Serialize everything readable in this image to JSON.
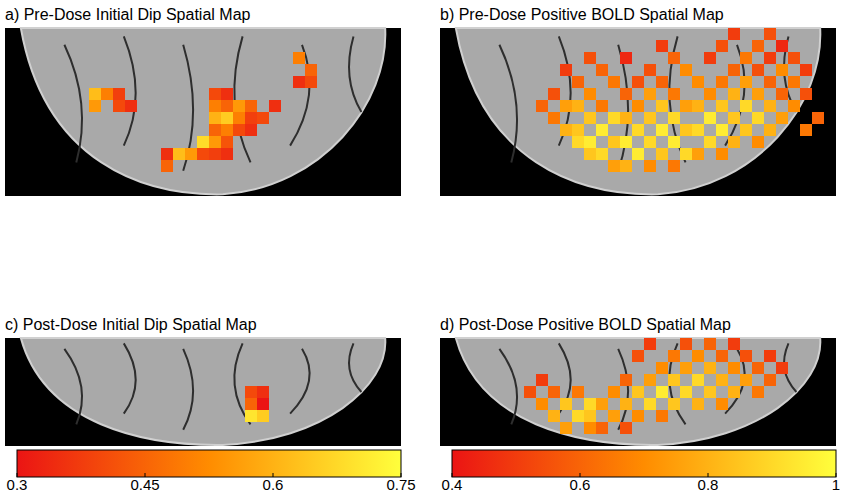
{
  "chart_data": [
    {
      "type": "heatmap",
      "title": "a) Pre-Dose Initial Dip Spatial Map",
      "xlim": [
        0,
        33
      ],
      "ylim": [
        0,
        14
      ],
      "tick_labels": false,
      "cells": [
        [
          7,
          5,
          0.62
        ],
        [
          7,
          6,
          0.55
        ],
        [
          8,
          5,
          0.5
        ],
        [
          9,
          5,
          0.38
        ],
        [
          9,
          6,
          0.4
        ],
        [
          10,
          6,
          0.35
        ],
        [
          24,
          2,
          0.5
        ],
        [
          25,
          3,
          0.45
        ],
        [
          25,
          4,
          0.4
        ],
        [
          24,
          4,
          0.35
        ],
        [
          17,
          5,
          0.4
        ],
        [
          17,
          6,
          0.5
        ],
        [
          17,
          7,
          0.6
        ],
        [
          17,
          8,
          0.45
        ],
        [
          17,
          9,
          0.55
        ],
        [
          17,
          10,
          0.38
        ],
        [
          18,
          5,
          0.35
        ],
        [
          18,
          6,
          0.45
        ],
        [
          18,
          7,
          0.65
        ],
        [
          18,
          8,
          0.5
        ],
        [
          18,
          9,
          0.42
        ],
        [
          18,
          10,
          0.35
        ],
        [
          19,
          6,
          0.55
        ],
        [
          19,
          7,
          0.5
        ],
        [
          19,
          8,
          0.4
        ],
        [
          20,
          6,
          0.45
        ],
        [
          20,
          7,
          0.38
        ],
        [
          20,
          8,
          0.35
        ],
        [
          21,
          7,
          0.4
        ],
        [
          22,
          6,
          0.35
        ],
        [
          13,
          10,
          0.35
        ],
        [
          14,
          10,
          0.62
        ],
        [
          15,
          10,
          0.55
        ],
        [
          16,
          10,
          0.4
        ],
        [
          13,
          11,
          0.45
        ],
        [
          16,
          9,
          0.68
        ]
      ]
    },
    {
      "type": "heatmap",
      "title": "b) Pre-Dose Positive BOLD Spatial Map",
      "xlim": [
        0,
        33
      ],
      "ylim": [
        0,
        14
      ],
      "tick_labels": false,
      "cells": [
        [
          24,
          0,
          0.5
        ],
        [
          27,
          0,
          0.55
        ],
        [
          18,
          1,
          0.5
        ],
        [
          23,
          1,
          0.55
        ],
        [
          26,
          1,
          0.6
        ],
        [
          28,
          1,
          0.45
        ],
        [
          12,
          2,
          0.55
        ],
        [
          15,
          2,
          0.45
        ],
        [
          19,
          2,
          0.6
        ],
        [
          22,
          2,
          0.5
        ],
        [
          25,
          2,
          0.65
        ],
        [
          27,
          2,
          0.5
        ],
        [
          29,
          2,
          0.55
        ],
        [
          10,
          3,
          0.5
        ],
        [
          13,
          3,
          0.6
        ],
        [
          17,
          3,
          0.55
        ],
        [
          20,
          3,
          0.7
        ],
        [
          24,
          3,
          0.6
        ],
        [
          26,
          3,
          0.55
        ],
        [
          28,
          3,
          0.7
        ],
        [
          30,
          3,
          0.5
        ],
        [
          11,
          4,
          0.6
        ],
        [
          14,
          4,
          0.65
        ],
        [
          16,
          4,
          0.55
        ],
        [
          18,
          4,
          0.6
        ],
        [
          21,
          4,
          0.7
        ],
        [
          23,
          4,
          0.65
        ],
        [
          25,
          4,
          0.75
        ],
        [
          27,
          4,
          0.6
        ],
        [
          29,
          4,
          0.65
        ],
        [
          9,
          5,
          0.55
        ],
        [
          12,
          5,
          0.7
        ],
        [
          15,
          5,
          0.6
        ],
        [
          17,
          5,
          0.75
        ],
        [
          19,
          5,
          0.65
        ],
        [
          22,
          5,
          0.7
        ],
        [
          24,
          5,
          0.8
        ],
        [
          26,
          5,
          0.75
        ],
        [
          28,
          5,
          0.6
        ],
        [
          30,
          5,
          0.55
        ],
        [
          8,
          6,
          0.6
        ],
        [
          10,
          6,
          0.75
        ],
        [
          11,
          6,
          0.8
        ],
        [
          13,
          6,
          0.65
        ],
        [
          16,
          6,
          0.7
        ],
        [
          18,
          6,
          0.85
        ],
        [
          20,
          6,
          0.75
        ],
        [
          21,
          6,
          0.8
        ],
        [
          23,
          6,
          0.85
        ],
        [
          25,
          6,
          0.9
        ],
        [
          27,
          6,
          0.8
        ],
        [
          29,
          6,
          0.7
        ],
        [
          9,
          7,
          0.65
        ],
        [
          12,
          7,
          0.85
        ],
        [
          14,
          7,
          0.9
        ],
        [
          15,
          7,
          0.8
        ],
        [
          17,
          7,
          0.85
        ],
        [
          19,
          7,
          0.9
        ],
        [
          22,
          7,
          0.95
        ],
        [
          24,
          7,
          0.85
        ],
        [
          26,
          7,
          0.9
        ],
        [
          28,
          7,
          0.75
        ],
        [
          31,
          7,
          0.6
        ],
        [
          10,
          8,
          0.8
        ],
        [
          11,
          8,
          0.85
        ],
        [
          13,
          8,
          0.95
        ],
        [
          16,
          8,
          0.9
        ],
        [
          18,
          8,
          0.95
        ],
        [
          20,
          8,
          0.85
        ],
        [
          21,
          8,
          0.9
        ],
        [
          23,
          8,
          0.95
        ],
        [
          25,
          8,
          0.85
        ],
        [
          27,
          8,
          0.8
        ],
        [
          30,
          8,
          0.65
        ],
        [
          11,
          9,
          0.9
        ],
        [
          12,
          9,
          0.95
        ],
        [
          14,
          9,
          0.85
        ],
        [
          15,
          9,
          0.95
        ],
        [
          17,
          9,
          0.9
        ],
        [
          19,
          9,
          0.95
        ],
        [
          22,
          9,
          0.9
        ],
        [
          24,
          9,
          0.8
        ],
        [
          26,
          9,
          0.7
        ],
        [
          12,
          10,
          0.85
        ],
        [
          13,
          10,
          0.9
        ],
        [
          16,
          10,
          0.95
        ],
        [
          18,
          10,
          0.85
        ],
        [
          20,
          10,
          0.9
        ],
        [
          21,
          10,
          0.75
        ],
        [
          23,
          10,
          0.7
        ],
        [
          14,
          11,
          0.75
        ],
        [
          15,
          11,
          0.8
        ],
        [
          17,
          11,
          0.7
        ],
        [
          19,
          11,
          0.65
        ]
      ]
    },
    {
      "type": "heatmap",
      "title": "c) Post-Dose Initial Dip Spatial Map",
      "xlim": [
        0,
        33
      ],
      "ylim": [
        0,
        9
      ],
      "tick_labels": false,
      "cells": [
        [
          20,
          4,
          0.4
        ],
        [
          21,
          4,
          0.35
        ],
        [
          20,
          5,
          0.45
        ],
        [
          21,
          5,
          0.3
        ],
        [
          20,
          6,
          0.7
        ],
        [
          21,
          6,
          0.65
        ]
      ],
      "colorbar": {
        "range": [
          0.3,
          0.75
        ],
        "ticks": [
          0.3,
          0.45,
          0.6,
          0.75
        ]
      }
    },
    {
      "type": "heatmap",
      "title": "d) Post-Dose Positive BOLD Spatial Map",
      "xlim": [
        0,
        33
      ],
      "ylim": [
        0,
        9
      ],
      "tick_labels": false,
      "cells": [
        [
          17,
          0,
          0.5
        ],
        [
          20,
          0,
          0.55
        ],
        [
          22,
          0,
          0.6
        ],
        [
          24,
          0,
          0.5
        ],
        [
          16,
          1,
          0.55
        ],
        [
          19,
          1,
          0.65
        ],
        [
          21,
          1,
          0.7
        ],
        [
          23,
          1,
          0.6
        ],
        [
          25,
          1,
          0.55
        ],
        [
          27,
          1,
          0.5
        ],
        [
          18,
          2,
          0.7
        ],
        [
          20,
          2,
          0.75
        ],
        [
          22,
          2,
          0.8
        ],
        [
          24,
          2,
          0.7
        ],
        [
          26,
          2,
          0.6
        ],
        [
          28,
          2,
          0.5
        ],
        [
          8,
          3,
          0.5
        ],
        [
          15,
          3,
          0.6
        ],
        [
          17,
          3,
          0.75
        ],
        [
          19,
          3,
          0.85
        ],
        [
          21,
          3,
          0.9
        ],
        [
          23,
          3,
          0.8
        ],
        [
          25,
          3,
          0.75
        ],
        [
          27,
          3,
          0.6
        ],
        [
          7,
          4,
          0.55
        ],
        [
          9,
          4,
          0.6
        ],
        [
          11,
          4,
          0.65
        ],
        [
          14,
          4,
          0.7
        ],
        [
          16,
          4,
          0.85
        ],
        [
          18,
          4,
          0.95
        ],
        [
          20,
          4,
          0.9
        ],
        [
          22,
          4,
          0.85
        ],
        [
          24,
          4,
          0.8
        ],
        [
          26,
          4,
          0.65
        ],
        [
          8,
          5,
          0.7
        ],
        [
          10,
          5,
          0.85
        ],
        [
          12,
          5,
          0.9
        ],
        [
          13,
          5,
          0.75
        ],
        [
          15,
          5,
          0.8
        ],
        [
          17,
          5,
          0.9
        ],
        [
          19,
          5,
          0.85
        ],
        [
          21,
          5,
          0.8
        ],
        [
          23,
          5,
          0.7
        ],
        [
          9,
          6,
          0.8
        ],
        [
          11,
          6,
          0.9
        ],
        [
          12,
          6,
          0.85
        ],
        [
          14,
          6,
          0.75
        ],
        [
          16,
          6,
          0.7
        ],
        [
          18,
          6,
          0.65
        ],
        [
          10,
          7,
          0.75
        ],
        [
          12,
          7,
          0.7
        ],
        [
          13,
          7,
          0.6
        ],
        [
          15,
          7,
          0.55
        ]
      ],
      "colorbar": {
        "range": [
          0.4,
          1
        ],
        "ticks": [
          0.4,
          0.6,
          0.8,
          1
        ]
      }
    }
  ]
}
